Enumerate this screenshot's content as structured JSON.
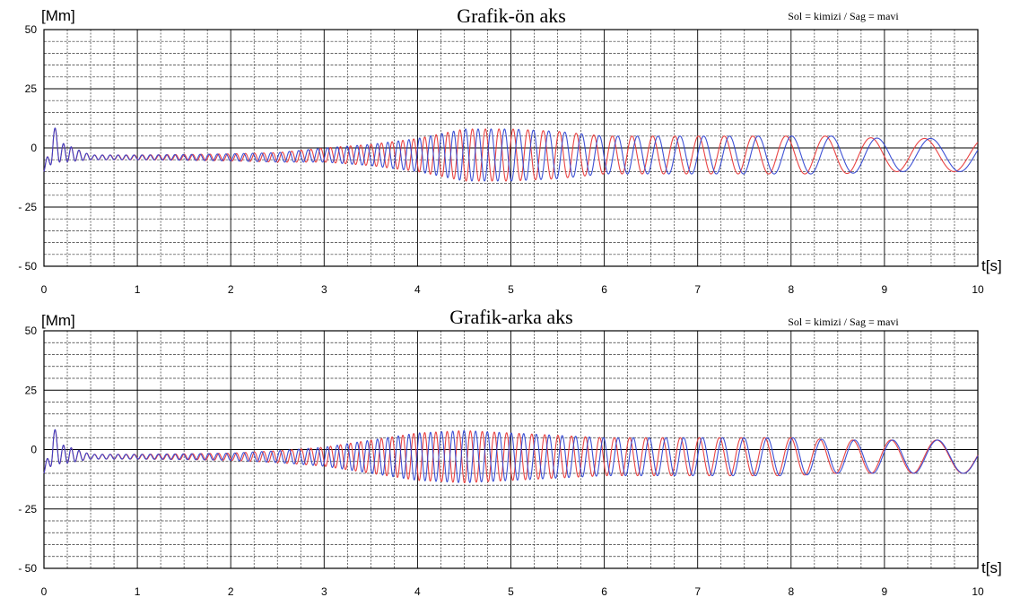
{
  "chart_data": [
    {
      "type": "line",
      "title": "Grafik-ön aks",
      "legend_text": "Sol = kimizi / Sag = mavi",
      "legend_position": "top-right",
      "ylabel": "[Mm]",
      "xlabel": "t[s]",
      "xlim": [
        0,
        10
      ],
      "ylim": [
        -50,
        50
      ],
      "xticks": [
        0,
        1,
        2,
        3,
        4,
        5,
        6,
        7,
        8,
        9,
        10
      ],
      "xtick_labels": [
        "0",
        "1",
        "2",
        "3",
        "4",
        "5",
        "6",
        "7",
        "8",
        "9",
        "10"
      ],
      "yticks": [
        50,
        25,
        0,
        -25,
        -50
      ],
      "ytick_labels": [
        "50",
        "25",
        "0",
        "- 25",
        "- 50"
      ],
      "grid": true,
      "series": [
        {
          "name": "Sol",
          "color": "#e83a3a",
          "t": [
            0.0,
            0.1,
            0.2,
            0.5,
            1.0,
            1.5,
            2.0,
            2.5,
            3.0,
            3.5,
            4.0,
            4.5,
            5.0,
            5.5,
            6.0,
            6.5,
            7.0,
            7.5,
            8.0,
            8.5,
            9.0,
            9.5,
            10.0
          ],
          "center": [
            -10,
            2,
            -2,
            -4,
            -4,
            -4,
            -4,
            -4,
            -3,
            -3,
            -3,
            -3,
            -3,
            -3,
            -3,
            -3,
            -3,
            -3,
            -3,
            -3,
            -3,
            -3,
            -3
          ],
          "amplitude": [
            0,
            8,
            4,
            1,
            1,
            1.2,
            1.5,
            2,
            3,
            4.5,
            7,
            11,
            11,
            10,
            8,
            8,
            8,
            8,
            8,
            8,
            7,
            7,
            7
          ],
          "frequency_hz": [
            10,
            10,
            12,
            12,
            11.5,
            11,
            10.5,
            10,
            9.5,
            9,
            8.5,
            7.5,
            6.5,
            5.7,
            5,
            4.4,
            3.8,
            3.2,
            2.5,
            2.1,
            1.8,
            1.6,
            1.5
          ]
        },
        {
          "name": "Sag",
          "color": "#2a3fd0",
          "t": [
            0.0,
            0.1,
            0.2,
            0.5,
            1.0,
            1.5,
            2.0,
            2.5,
            3.0,
            3.5,
            4.0,
            4.5,
            5.0,
            5.5,
            6.0,
            6.5,
            7.0,
            7.5,
            8.0,
            8.5,
            9.0,
            9.5,
            10.0
          ],
          "center": [
            -10,
            2,
            -2,
            -4,
            -4,
            -4,
            -4,
            -4,
            -3,
            -3,
            -3,
            -3,
            -3,
            -3,
            -3,
            -3,
            -3,
            -3,
            -3,
            -3,
            -3,
            -3,
            -3
          ],
          "amplitude": [
            0,
            8,
            4,
            1,
            1,
            1.2,
            1.5,
            2,
            3,
            4.5,
            7,
            11,
            11,
            10,
            8,
            8,
            8,
            8,
            8,
            8,
            7,
            7,
            7
          ],
          "frequency_hz": [
            10,
            10,
            12,
            12,
            11.5,
            11,
            10.5,
            10,
            9.5,
            9,
            8.5,
            7.5,
            6.5,
            5.7,
            5,
            4.4,
            3.8,
            3.2,
            2.5,
            2.1,
            1.8,
            1.6,
            1.5
          ]
        }
      ]
    },
    {
      "type": "line",
      "title": "Grafik-arka aks",
      "legend_text": "Sol = kimizi / Sag = mavi",
      "legend_position": "top-right",
      "ylabel": "[Mm]",
      "xlabel": "t[s]",
      "xlim": [
        0,
        10
      ],
      "ylim": [
        -50,
        50
      ],
      "xticks": [
        0,
        1,
        2,
        3,
        4,
        5,
        6,
        7,
        8,
        9,
        10
      ],
      "xtick_labels": [
        "0",
        "1",
        "2",
        "3",
        "4",
        "5",
        "6",
        "7",
        "8",
        "9",
        "10"
      ],
      "yticks": [
        50,
        25,
        0,
        -25,
        -50
      ],
      "ytick_labels": [
        "50",
        "25",
        "0",
        "- 25",
        "- 50"
      ],
      "grid": true,
      "series": [
        {
          "name": "Sol",
          "color": "#e83a3a",
          "t": [
            0.0,
            0.1,
            0.2,
            0.5,
            1.0,
            1.5,
            2.0,
            2.5,
            3.0,
            3.5,
            4.0,
            4.5,
            5.0,
            5.5,
            6.0,
            6.5,
            7.0,
            7.5,
            8.0,
            8.5,
            9.0,
            9.5,
            10.0
          ],
          "center": [
            -10,
            2,
            -2,
            -3,
            -3,
            -3,
            -3,
            -3,
            -3,
            -3,
            -3,
            -3,
            -3,
            -3,
            -3,
            -3,
            -3,
            -3,
            -3,
            -3,
            -3,
            -3,
            -3
          ],
          "amplitude": [
            0,
            8,
            4,
            1,
            1,
            1.2,
            1.5,
            2.5,
            4,
            7,
            10,
            11,
            10,
            9,
            8,
            8,
            8,
            8,
            8,
            7,
            7,
            7,
            7
          ],
          "frequency_hz": [
            10,
            10,
            12,
            12,
            11.5,
            11,
            10.5,
            10,
            9.5,
            9,
            8.5,
            8,
            7.5,
            7,
            6.4,
            5.6,
            4.8,
            4.1,
            3.4,
            2.8,
            2.3,
            1.9,
            1.6
          ]
        },
        {
          "name": "Sag",
          "color": "#2a3fd0",
          "t": [
            0.0,
            0.1,
            0.2,
            0.5,
            1.0,
            1.5,
            2.0,
            2.5,
            3.0,
            3.5,
            4.0,
            4.5,
            5.0,
            5.5,
            6.0,
            6.5,
            7.0,
            7.5,
            8.0,
            8.5,
            9.0,
            9.5,
            10.0
          ],
          "center": [
            -10,
            2,
            -2,
            -3,
            -3,
            -3,
            -3,
            -3,
            -3,
            -3,
            -3,
            -3,
            -3,
            -3,
            -3,
            -3,
            -3,
            -3,
            -3,
            -3,
            -3,
            -3,
            -3
          ],
          "amplitude": [
            0,
            8,
            4,
            1,
            1,
            1.2,
            1.5,
            2.5,
            4,
            7,
            10,
            11,
            10,
            9,
            8,
            8,
            8,
            8,
            8,
            7,
            7,
            7,
            7
          ],
          "frequency_hz": [
            10,
            10,
            12,
            12,
            11.5,
            11,
            10.5,
            10,
            9.5,
            9,
            8.5,
            8,
            7.5,
            7,
            6.4,
            5.6,
            4.8,
            4.1,
            3.4,
            2.8,
            2.3,
            1.9,
            1.6
          ]
        }
      ]
    }
  ]
}
